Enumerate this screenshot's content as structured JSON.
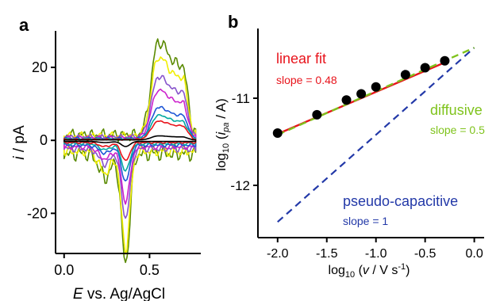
{
  "chart_data": [
    {
      "panel_label": "a",
      "type": "line",
      "ylabel_symbol": "i",
      "ylabel_unit": " / pA",
      "xlabel_symbol": "E",
      "xlabel_rest": " vs. Ag/AgCl",
      "xlim": [
        -0.05,
        0.8
      ],
      "ylim": [
        -31,
        30
      ],
      "xticks": [
        0.0,
        0.5
      ],
      "xtick_labels": [
        "0.0",
        "0.5"
      ],
      "yticks": [
        -20,
        0,
        20
      ],
      "ytick_labels": [
        "-20",
        "0",
        "20"
      ],
      "series": [
        {
          "color": "#000000",
          "ipa": 1.1,
          "ipc": -1.4,
          "base": 0.3,
          "noise": 0.0
        },
        {
          "color": "#e8141c",
          "ipa": 5.0,
          "ipc": -5.0,
          "base": 0.6,
          "noise": 0.2
        },
        {
          "color": "#00a9a0",
          "ipa": 6.5,
          "ipc": -7.5,
          "base": 0.9,
          "noise": 0.3
        },
        {
          "color": "#1e56d6",
          "ipa": 8.5,
          "ipc": -10.0,
          "base": 1.3,
          "noise": 0.4
        },
        {
          "color": "#cc22cc",
          "ipa": 13.0,
          "ipc": -15.0,
          "base": 1.8,
          "noise": 0.6
        },
        {
          "color": "#8855cc",
          "ipa": 16.5,
          "ipc": -19.0,
          "base": 2.3,
          "noise": 0.8
        },
        {
          "color": "#f0ee00",
          "ipa": 21.5,
          "ipc": -27.0,
          "base": 3.0,
          "noise": 1.2
        },
        {
          "color": "#5a8a00",
          "ipa": 25.5,
          "ipc": -30.0,
          "base": 3.6,
          "noise": 1.8
        }
      ]
    },
    {
      "panel_label": "b",
      "type": "scatter",
      "xlabel": "log10 (v / V s-1)",
      "ylabel": "log10 (ipa / A)",
      "xlim": [
        -2.2,
        0.1
      ],
      "ylim": [
        -12.6,
        -10.2
      ],
      "xticks": [
        -2.0,
        -1.5,
        -1.0,
        -0.5,
        0.0
      ],
      "xtick_labels": [
        "-2.0",
        "-1.5",
        "-1.0",
        "-0.5",
        "0.0"
      ],
      "yticks": [
        -12,
        -11
      ],
      "ytick_labels": [
        "-12",
        "-11"
      ],
      "points": {
        "x": [
          -2.0,
          -1.6,
          -1.3,
          -1.15,
          -1.0,
          -0.7,
          -0.5,
          -0.3
        ],
        "y": [
          -11.4,
          -11.19,
          -11.02,
          -10.95,
          -10.87,
          -10.73,
          -10.65,
          -10.57
        ]
      },
      "fits": [
        {
          "label": "linear fit",
          "slope_label": "slope = 0.48",
          "color": "#e8141c",
          "x": [
            -2.0,
            -0.3
          ],
          "y": [
            -11.41,
            -10.59
          ]
        },
        {
          "label": "diffusive",
          "slope_label": "slope = 0.5",
          "color": "#7fc31c",
          "x": [
            -2.0,
            0.0
          ],
          "y": [
            -11.42,
            -10.42
          ]
        },
        {
          "label": "pseudo-capacitive",
          "slope_label": "slope = 1",
          "color": "#2339a8",
          "x": [
            -2.0,
            0.0
          ],
          "y": [
            -12.42,
            -10.42
          ]
        }
      ]
    }
  ]
}
